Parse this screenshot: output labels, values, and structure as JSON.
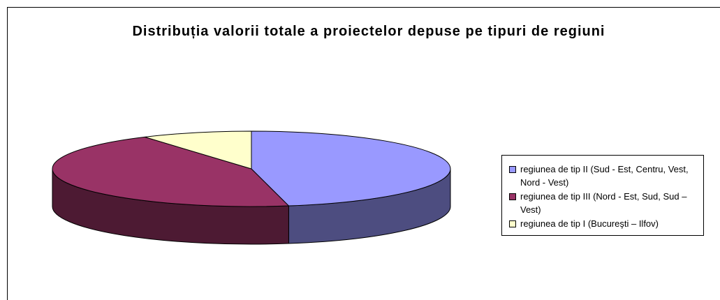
{
  "chart_data": {
    "type": "pie3d",
    "title": "Distribuția valorii totale a proiectelor depuse pe tipuri de regiuni",
    "categories": [
      "regiunea de tip II (Sud - Est, Centru, Vest, Nord - Vest)",
      "regiunea de tip III (Nord - Est, Sud, Sud – Vest)",
      "regiunea de tip I (Bucureşti – Ilfov)"
    ],
    "values": [
      47,
      44,
      9
    ],
    "colors": [
      "#9999ff",
      "#993366",
      "#ffffcc"
    ],
    "side_colors": [
      "#4d4d80",
      "#4d1a33",
      "#808066"
    ],
    "legend": "right"
  }
}
